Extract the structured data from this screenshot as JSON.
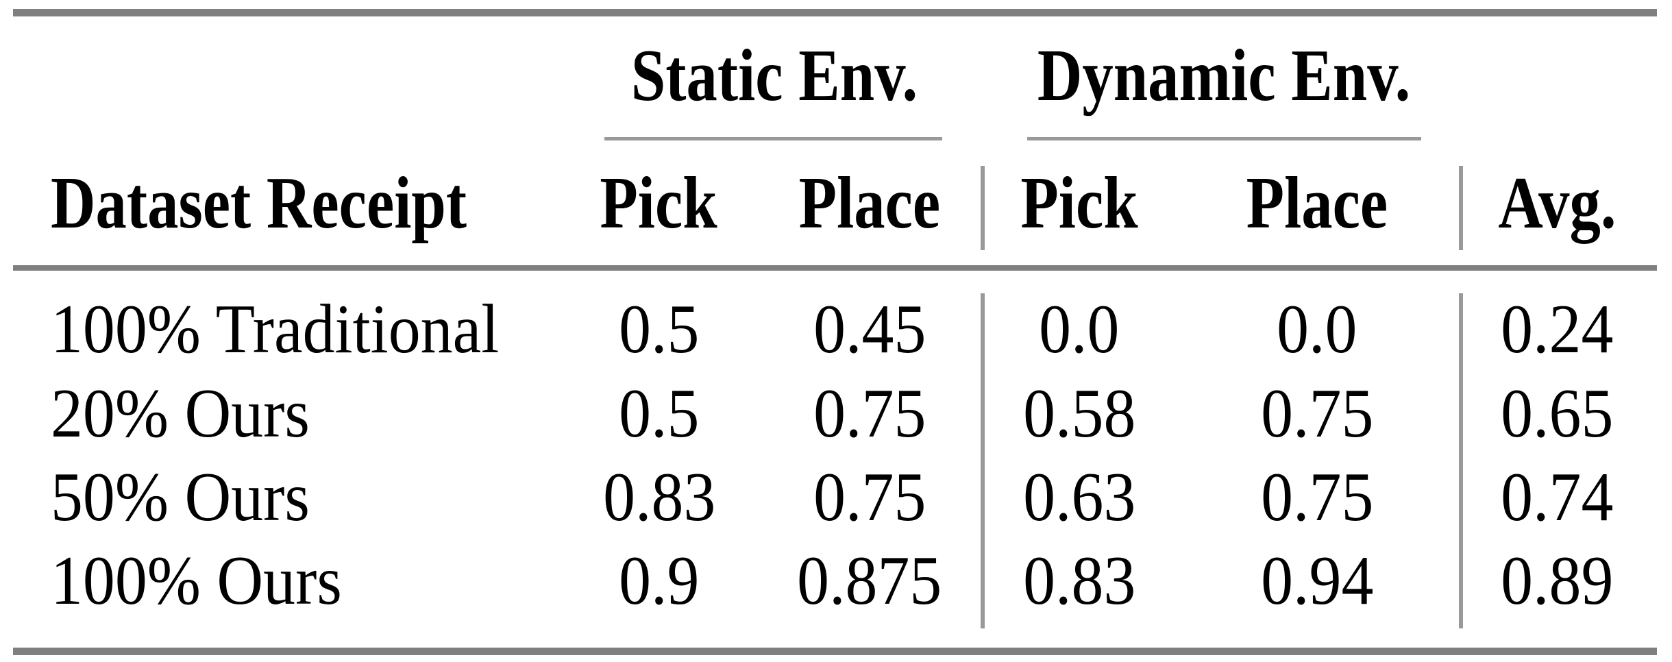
{
  "colors": {
    "rule_heavy": "#7f7f7f",
    "rule_light": "#999999",
    "text": "#000000",
    "background": "#ffffff"
  },
  "table": {
    "row_header": "Dataset Receipt",
    "groups": [
      {
        "label": "Static Env.",
        "columns": [
          "Pick",
          "Place"
        ]
      },
      {
        "label": "Dynamic Env.",
        "columns": [
          "Pick",
          "Place"
        ]
      }
    ],
    "avg_header": "Avg.",
    "rows": [
      {
        "label": "100% Traditional",
        "values": [
          "0.5",
          "0.45",
          "0.0",
          "0.0",
          "0.24"
        ]
      },
      {
        "label": "20% Ours",
        "values": [
          "0.5",
          "0.75",
          "0.58",
          "0.75",
          "0.65"
        ]
      },
      {
        "label": "50% Ours",
        "values": [
          "0.83",
          "0.75",
          "0.63",
          "0.75",
          "0.74"
        ]
      },
      {
        "label": "100% Ours",
        "values": [
          "0.9",
          "0.875",
          "0.83",
          "0.94",
          "0.89"
        ]
      }
    ]
  }
}
